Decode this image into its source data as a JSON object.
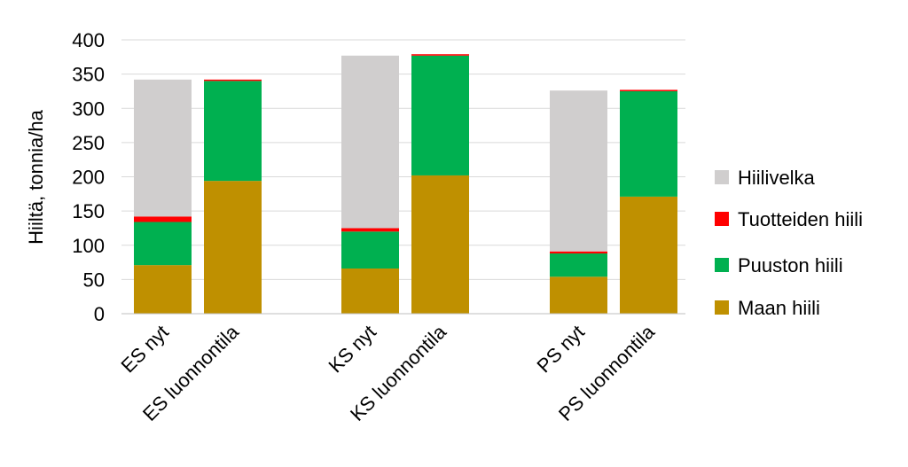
{
  "chart_data": {
    "type": "bar",
    "stacked": true,
    "ylabel": "Hiiltä, tonnia/ha",
    "ylim": [
      0,
      400
    ],
    "yticks": [
      0,
      50,
      100,
      150,
      200,
      250,
      300,
      350,
      400
    ],
    "grid": true,
    "legend_position": "right",
    "categories": [
      "ES nyt",
      "ES luonnontila",
      "KS nyt",
      "KS luonnontila",
      "PS nyt",
      "PS luonnontila"
    ],
    "groups": [
      [
        0,
        1
      ],
      [
        2,
        3
      ],
      [
        4,
        5
      ]
    ],
    "series": [
      {
        "name": "Maan hiili",
        "color": "#bf9000",
        "values": [
          71,
          194,
          66,
          202,
          54,
          171
        ]
      },
      {
        "name": "Puuston hiili",
        "color": "#00b050",
        "values": [
          63,
          146,
          54,
          175,
          34,
          154
        ]
      },
      {
        "name": "Tuotteiden hiili",
        "color": "#ff0000",
        "values": [
          8,
          2,
          5,
          2,
          3,
          2
        ]
      },
      {
        "name": "Hiilivelka",
        "color": "#d0cece",
        "values": [
          200,
          0,
          252,
          0,
          235,
          0
        ]
      }
    ]
  }
}
